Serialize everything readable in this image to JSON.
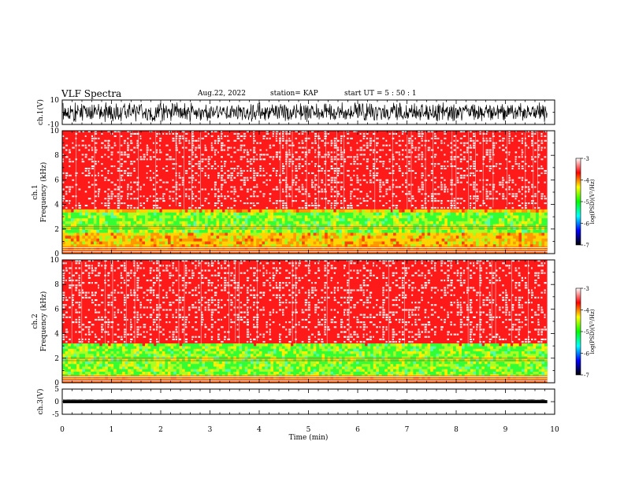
{
  "header": {
    "title": "VLF Spectra",
    "date": "Aug.22, 2022",
    "station": "station= KAP",
    "start": "start  UT  =   5  : 50 : 1"
  },
  "chart_data": [
    {
      "type": "line",
      "panel": "ch1-waveform",
      "ylabel": "ch.1(V)",
      "ylim": [
        -10,
        10
      ],
      "yticks": [
        "10",
        "-10"
      ],
      "xlim": [
        0,
        10
      ],
      "data_extent_min": 9.85,
      "signal_amplitude_range": [
        -8,
        8
      ]
    },
    {
      "type": "heatmap",
      "panel": "ch1-spectrogram",
      "ylabel": "ch.1 Frequency (kHz)",
      "ylabel_lines": [
        "ch.1",
        "Frequency  (kHz)"
      ],
      "ylim": [
        0,
        10
      ],
      "yticks": [
        "0",
        "2",
        "4",
        "6",
        "8",
        "10"
      ],
      "xlim": [
        0,
        10
      ],
      "data_extent_min": 9.85,
      "bands_khz": {
        "red_above": 3.6,
        "green_core": [
          1.5,
          3.3
        ],
        "line_frequencies": [
          2.05,
          2.2
        ]
      },
      "colorbar": {
        "label": "log(PSD)(V²/Hz)",
        "range": [
          -7,
          -3
        ],
        "ticks": [
          "-3",
          "-4",
          "-5",
          "-6",
          "-7"
        ],
        "colors": [
          "#ffffff",
          "#ff0000",
          "#ffff00",
          "#00ff00",
          "#00ffff",
          "#0000ff",
          "#000000"
        ]
      }
    },
    {
      "type": "heatmap",
      "panel": "ch2-spectrogram",
      "ylabel": "ch.2 Frequency (kHz)",
      "ylabel_lines": [
        "ch.2",
        "Frequency  (kHz)"
      ],
      "ylim": [
        0,
        10
      ],
      "yticks": [
        "0",
        "2",
        "4",
        "6",
        "8",
        "10"
      ],
      "xlim": [
        0,
        10
      ],
      "data_extent_min": 9.85,
      "bands_khz": {
        "red_above": 3.2,
        "green_core": [
          0.5,
          3.0
        ],
        "line_frequencies": [
          1.8,
          2.0
        ]
      },
      "colorbar": {
        "label": "log(PSD)(V²/Hz)",
        "range": [
          -7,
          -3
        ],
        "ticks": [
          "-3",
          "-4",
          "-5",
          "-6",
          "-7"
        ],
        "colors": [
          "#ffffff",
          "#ff0000",
          "#ffff00",
          "#00ff00",
          "#00ffff",
          "#0000ff",
          "#000000"
        ]
      }
    },
    {
      "type": "line",
      "panel": "ch3-waveform",
      "ylabel": "ch.3(V)",
      "ylim": [
        -5,
        5
      ],
      "yticks": [
        "5",
        "0",
        "-5"
      ],
      "xlim": [
        0,
        10
      ],
      "data_extent_min": 9.85,
      "signal_amplitude_range": [
        -0.6,
        0.6
      ],
      "xlabel": "Time  (min)",
      "xticks": [
        "0",
        "1",
        "2",
        "3",
        "4",
        "5",
        "6",
        "7",
        "8",
        "9",
        "10"
      ]
    }
  ]
}
